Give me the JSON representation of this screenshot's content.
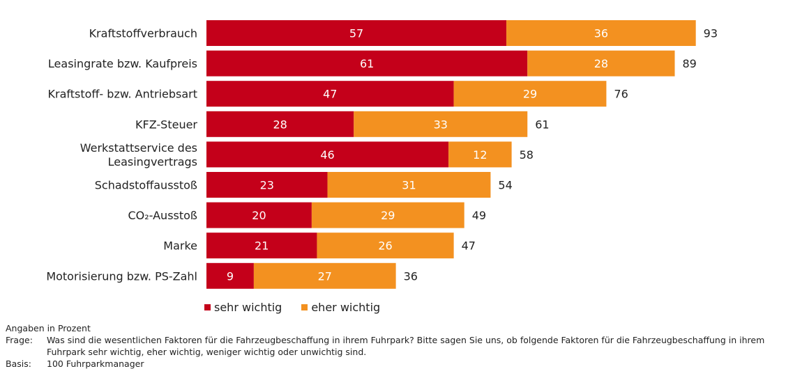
{
  "chart_data": {
    "type": "bar",
    "orientation": "horizontal",
    "stacked": true,
    "categories": [
      [
        "Kraftstoffverbrauch"
      ],
      [
        "Leasingrate bzw. Kaufpreis"
      ],
      [
        "Kraftstoff- bzw. Antriebsart"
      ],
      [
        "KFZ-Steuer"
      ],
      [
        "Werkstattservice des",
        "Leasingvertrags"
      ],
      [
        "Schadstoffausstoß"
      ],
      [
        "CO₂-Ausstoß"
      ],
      [
        "Marke"
      ],
      [
        "Motorisierung bzw. PS-Zahl"
      ]
    ],
    "series": [
      {
        "name": "sehr wichtig",
        "color": "#C4001A",
        "values": [
          57,
          61,
          47,
          28,
          46,
          23,
          20,
          21,
          9
        ]
      },
      {
        "name": "eher wichtig",
        "color": "#F39120",
        "values": [
          36,
          28,
          29,
          33,
          12,
          31,
          29,
          26,
          27
        ]
      }
    ],
    "totals": [
      93,
      89,
      76,
      61,
      58,
      54,
      49,
      47,
      36
    ],
    "xlim": [
      0,
      100
    ],
    "grid": false,
    "legend_position": "bottom"
  },
  "notes": {
    "unit": "Angaben in Prozent",
    "frage_label": "Frage:",
    "frage_text": "Was sind die wesentlichen Faktoren für die Fahrzeugbeschaffung in ihrem Fuhrpark? Bitte sagen Sie uns, ob folgende Faktoren für die Fahrzeugbeschaffung in ihrem Fuhrpark sehr wichtig, eher wichtig, weniger wichtig oder unwichtig sind.",
    "basis_label": "Basis:",
    "basis_text": "100 Fuhrparkmanager"
  }
}
